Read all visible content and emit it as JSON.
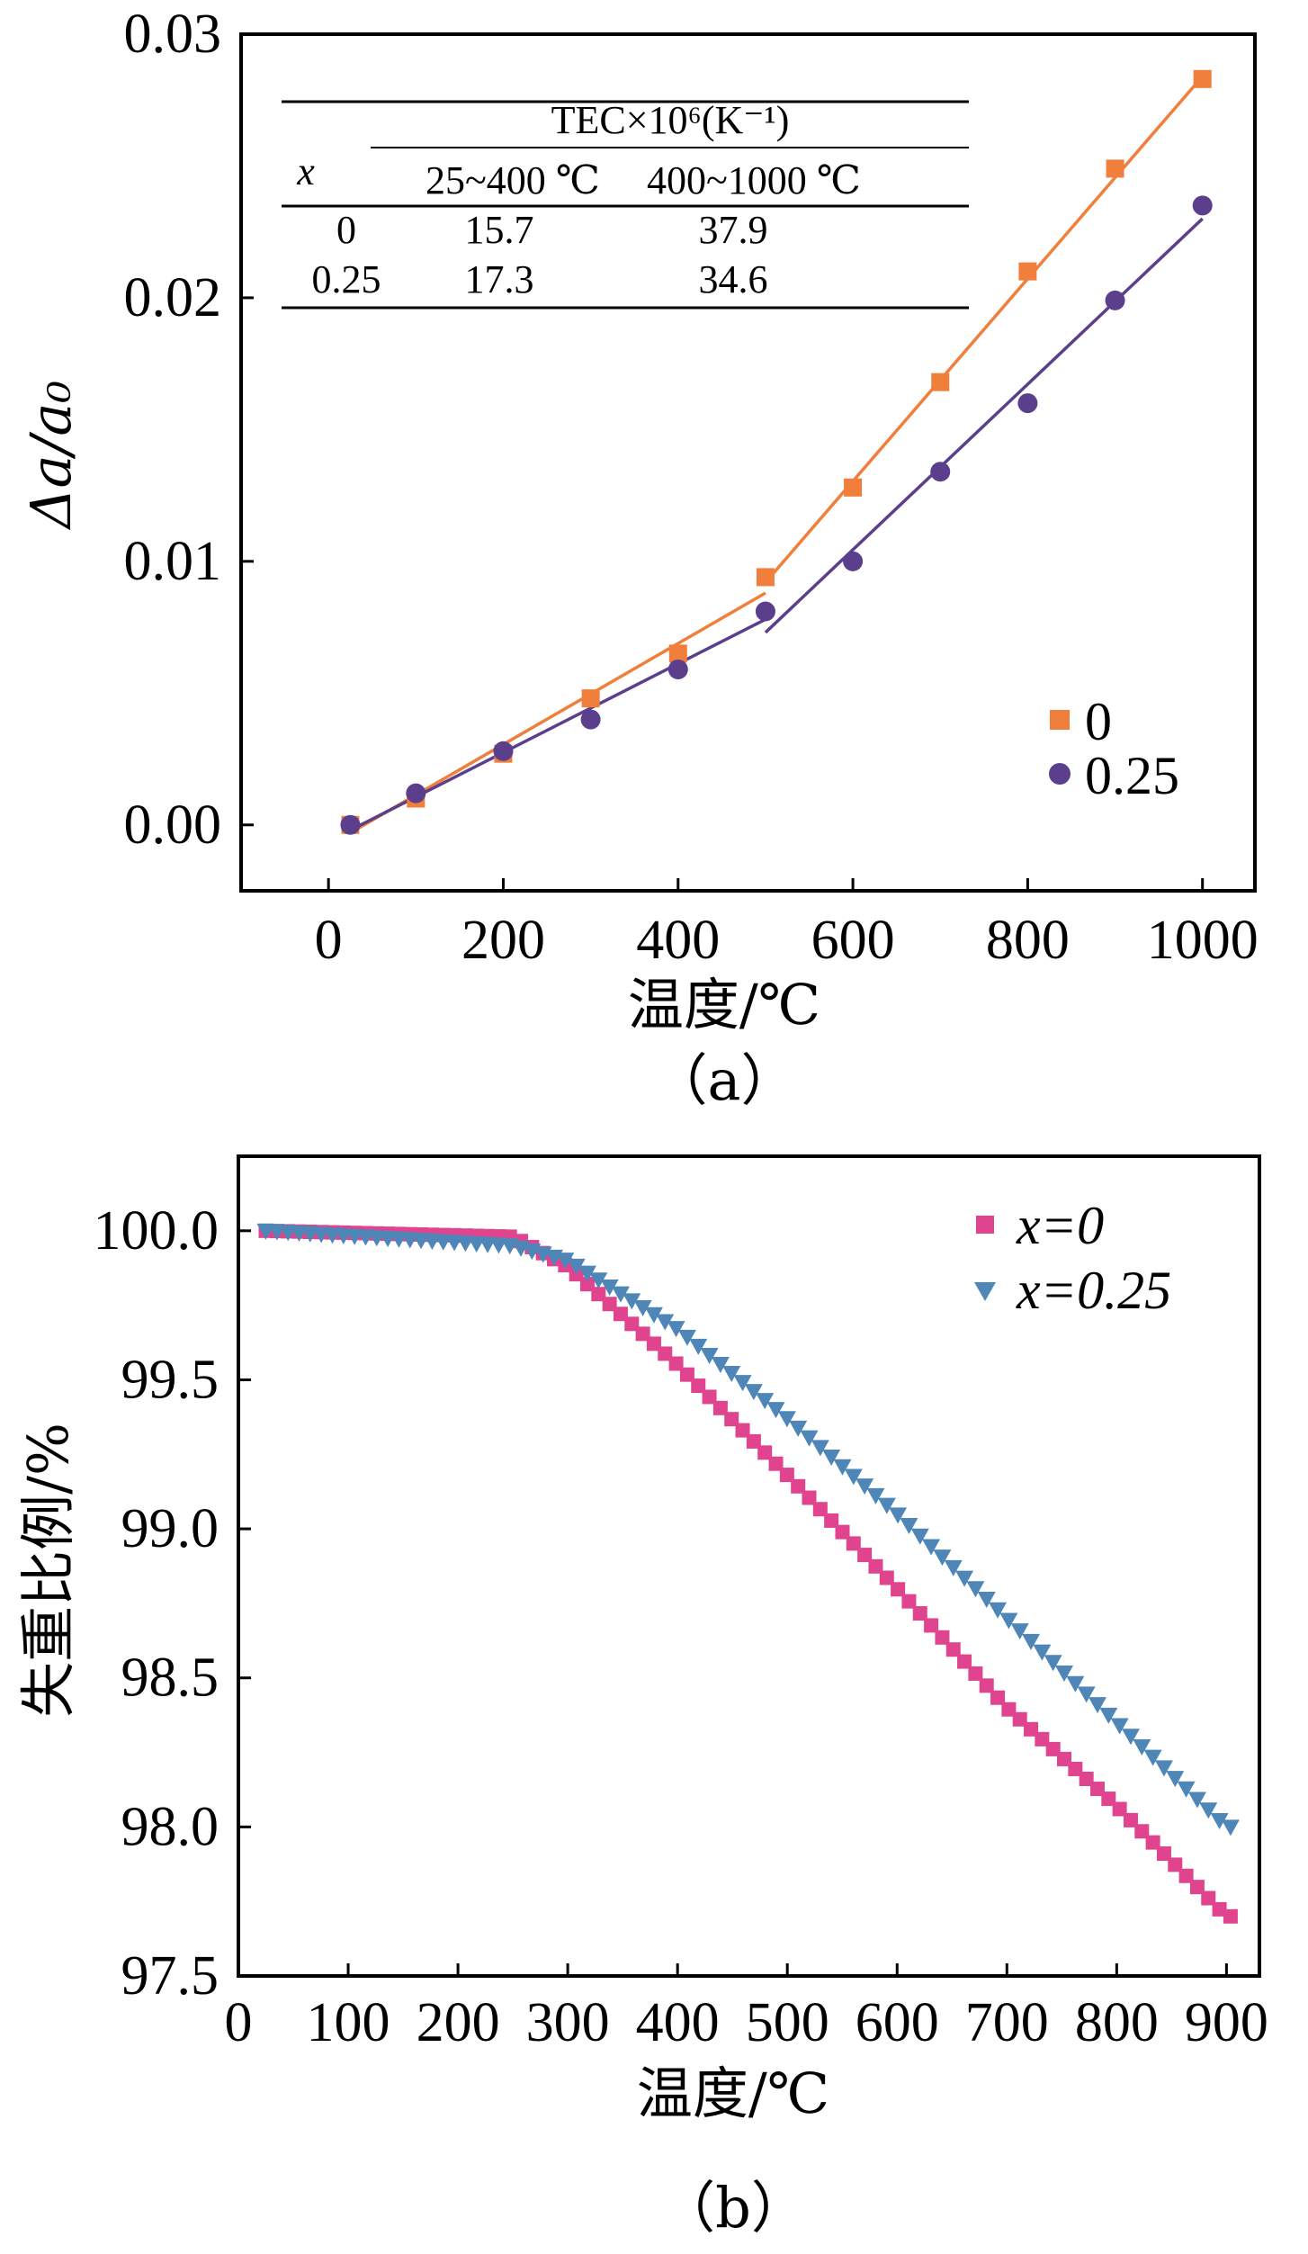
{
  "chart_data": [
    {
      "type": "scatter",
      "panel_label": "（a）",
      "xlabel": "温度/℃",
      "ylabel": "Δa/a₀",
      "xlim": [
        -100,
        1060
      ],
      "ylim": [
        -0.0025,
        0.03
      ],
      "xticks": [
        0,
        200,
        400,
        600,
        800,
        1000
      ],
      "xtick_labels": [
        "0",
        "200",
        "400",
        "600",
        "800",
        "1000"
      ],
      "yticks": [
        0.0,
        0.01,
        0.02,
        0.03
      ],
      "ytick_labels": [
        "0.00",
        "0.01",
        "0.02",
        "0.03"
      ],
      "legend": {
        "position": "bottom-right",
        "entries": [
          "0",
          "0.25"
        ]
      },
      "series": [
        {
          "name": "0",
          "marker": "square",
          "color": "#f07f3c",
          "x": [
            25,
            100,
            200,
            300,
            400,
            500,
            600,
            700,
            800,
            900,
            1000
          ],
          "y": [
            0.0,
            0.001,
            0.0027,
            0.0048,
            0.0065,
            0.0094,
            0.0128,
            0.0168,
            0.021,
            0.0249,
            0.0283
          ],
          "fit_lines": [
            {
              "x": [
                25,
                500
              ],
              "y": [
                -0.0003,
                0.0088
              ]
            },
            {
              "x": [
                500,
                1000
              ],
              "y": [
                0.0092,
                0.0284
              ]
            }
          ]
        },
        {
          "name": "0.25",
          "marker": "circle",
          "color": "#5b3f8c",
          "x": [
            25,
            100,
            200,
            300,
            400,
            500,
            600,
            700,
            800,
            900,
            1000
          ],
          "y": [
            0.0,
            0.0012,
            0.0028,
            0.004,
            0.0059,
            0.0081,
            0.01,
            0.0134,
            0.016,
            0.0199,
            0.0235
          ],
          "fit_lines": [
            {
              "x": [
                25,
                500
              ],
              "y": [
                -0.0002,
                0.0078
              ]
            },
            {
              "x": [
                500,
                1000
              ],
              "y": [
                0.0073,
                0.023
              ]
            }
          ]
        }
      ],
      "inset_table": {
        "group_header": "TEC×10⁶(K⁻¹)",
        "columns": [
          "x",
          "25~400 ℃",
          "400~1000 ℃"
        ],
        "rows": [
          [
            "0",
            "15.7",
            "37.9"
          ],
          [
            "0.25",
            "17.3",
            "34.6"
          ]
        ]
      }
    },
    {
      "type": "scatter",
      "panel_label": "（b）",
      "xlabel": "温度/℃",
      "ylabel": "失重比例/%",
      "xlim": [
        0,
        930
      ],
      "ylim": [
        97.5,
        100.25
      ],
      "xticks": [
        0,
        100,
        200,
        300,
        400,
        500,
        600,
        700,
        800,
        900
      ],
      "xtick_labels": [
        "0",
        "100",
        "200",
        "300",
        "400",
        "500",
        "600",
        "700",
        "800",
        "900"
      ],
      "yticks": [
        97.5,
        98.0,
        98.5,
        99.0,
        99.5,
        100.0
      ],
      "ytick_labels": [
        "97.5",
        "98.0",
        "98.5",
        "99.0",
        "99.5",
        "100.0"
      ],
      "legend": {
        "position": "top-right",
        "entries": [
          "x=0",
          "x=0.25"
        ]
      },
      "series": [
        {
          "name": "x=0",
          "marker": "square",
          "color": "#e0448e",
          "x_start": 25,
          "x_step": 10.1,
          "count": 88,
          "curve": {
            "x": [
              25,
              250,
              300,
              400,
              500,
              600,
              700,
              800,
              900
            ],
            "y": [
              100.0,
              99.98,
              99.88,
              99.55,
              99.18,
              98.8,
              98.4,
              98.07,
              97.7
            ]
          }
        },
        {
          "name": "x=0.25",
          "marker": "triangle-down",
          "color": "#4f86b8",
          "x_start": 25,
          "x_step": 10.1,
          "count": 88,
          "curve": {
            "x": [
              25,
              250,
              300,
              400,
              500,
              600,
              700,
              800,
              900
            ],
            "y": [
              100.0,
              99.95,
              99.9,
              99.67,
              99.37,
              99.05,
              98.7,
              98.35,
              98.0
            ]
          }
        }
      ]
    }
  ]
}
